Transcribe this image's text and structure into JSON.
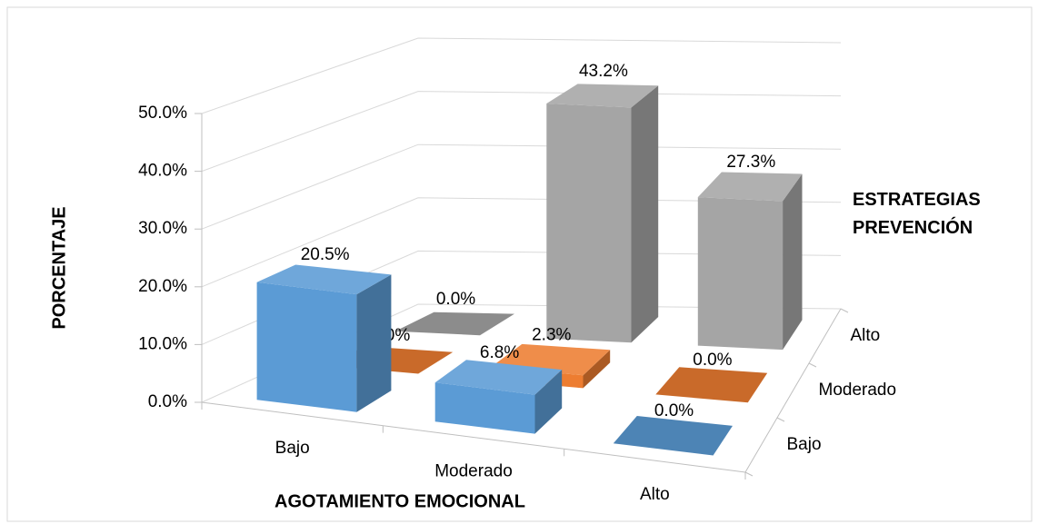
{
  "chart_data": {
    "type": "bar3d",
    "y_axis_label": "PORCENTAJE",
    "x_axis_label": "AGOTAMIENTO EMOCIONAL",
    "legend_title": "ESTRATEGIAS PREVENCIÓN",
    "categories": [
      "Bajo",
      "Moderado",
      "Alto"
    ],
    "series": [
      {
        "name": "Bajo",
        "color": "#5b9bd5",
        "values": [
          20.5,
          6.8,
          0.0
        ],
        "value_labels": [
          "20.5%",
          "6.8%",
          "0.0%"
        ]
      },
      {
        "name": "Moderado",
        "color": "#ed7d31",
        "values": [
          0.0,
          2.3,
          0.0
        ],
        "value_labels": [
          "0.0%",
          "2.3%",
          "0.0%"
        ]
      },
      {
        "name": "Alto",
        "color": "#a5a5a5",
        "values": [
          0.0,
          43.2,
          27.3
        ],
        "value_labels": [
          "0.0%",
          "43.2%",
          "27.3%"
        ]
      }
    ],
    "ylim": [
      0,
      50
    ],
    "yticks": [
      {
        "value": 0,
        "label": "0.0%"
      },
      {
        "value": 10,
        "label": "10.0%"
      },
      {
        "value": 20,
        "label": "20.0%"
      },
      {
        "value": 30,
        "label": "30.0%"
      },
      {
        "value": 40,
        "label": "40.0%"
      },
      {
        "value": 50,
        "label": "50.0%"
      }
    ],
    "grid": true
  }
}
